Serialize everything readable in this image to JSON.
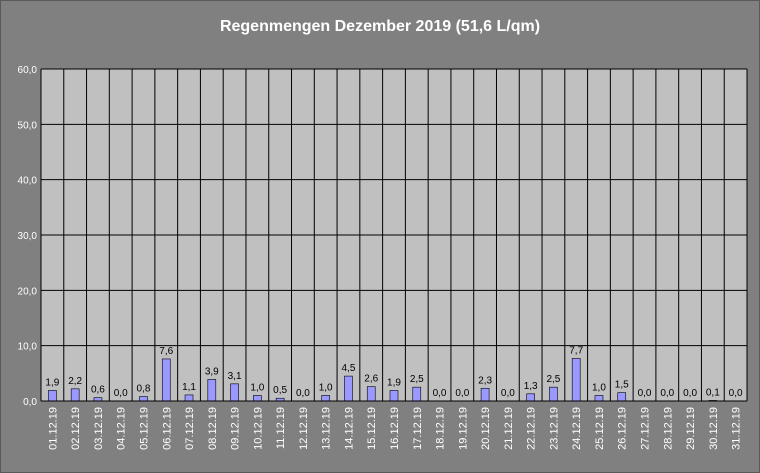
{
  "chart_data": {
    "type": "bar",
    "title": "Regenmengen Dezember 2019 (51,6 L/qm)",
    "xlabel": "",
    "ylabel": "",
    "ylim": [
      0,
      60
    ],
    "yticks": [
      "0,0",
      "10,0",
      "20,0",
      "30,0",
      "40,0",
      "50,0",
      "60,0"
    ],
    "grid": true,
    "categories": [
      "01.12.19",
      "02.12.19",
      "03.12.19",
      "04.12.19",
      "05.12.19",
      "06.12.19",
      "07.12.19",
      "08.12.19",
      "09.12.19",
      "10.12.19",
      "11.12.19",
      "12.12.19",
      "13.12.19",
      "14.12.19",
      "15.12.19",
      "16.12.19",
      "17.12.19",
      "18.12.19",
      "19.12.19",
      "20.12.19",
      "21.12.19",
      "22.12.19",
      "23.12.19",
      "24.12.19",
      "25.12.19",
      "26.12.19",
      "27.12.19",
      "28.12.19",
      "29.12.19",
      "30.12.19",
      "31.12.19"
    ],
    "values": [
      1.9,
      2.2,
      0.6,
      0.0,
      0.8,
      7.6,
      1.1,
      3.9,
      3.1,
      1.0,
      0.5,
      0.0,
      1.0,
      4.5,
      2.6,
      1.9,
      2.5,
      0.0,
      0.0,
      2.3,
      0.0,
      1.3,
      2.5,
      7.7,
      1.0,
      1.5,
      0.0,
      0.0,
      0.0,
      0.1,
      0.0
    ],
    "labels": [
      "1,9",
      "2,2",
      "0,6",
      "0,0",
      "0,8",
      "7,6",
      "1,1",
      "3,9",
      "3,1",
      "1,0",
      "0,5",
      "0,0",
      "1,0",
      "4,5",
      "2,6",
      "1,9",
      "2,5",
      "0,0",
      "0,0",
      "2,3",
      "0,0",
      "1,3",
      "2,5",
      "7,7",
      "1,0",
      "1,5",
      "0,0",
      "0,0",
      "0,0",
      "0,1",
      "0,0"
    ],
    "colors": {
      "bar": "#9999ff",
      "plot_bg": "#c0c0c0",
      "background": "#808080"
    }
  }
}
